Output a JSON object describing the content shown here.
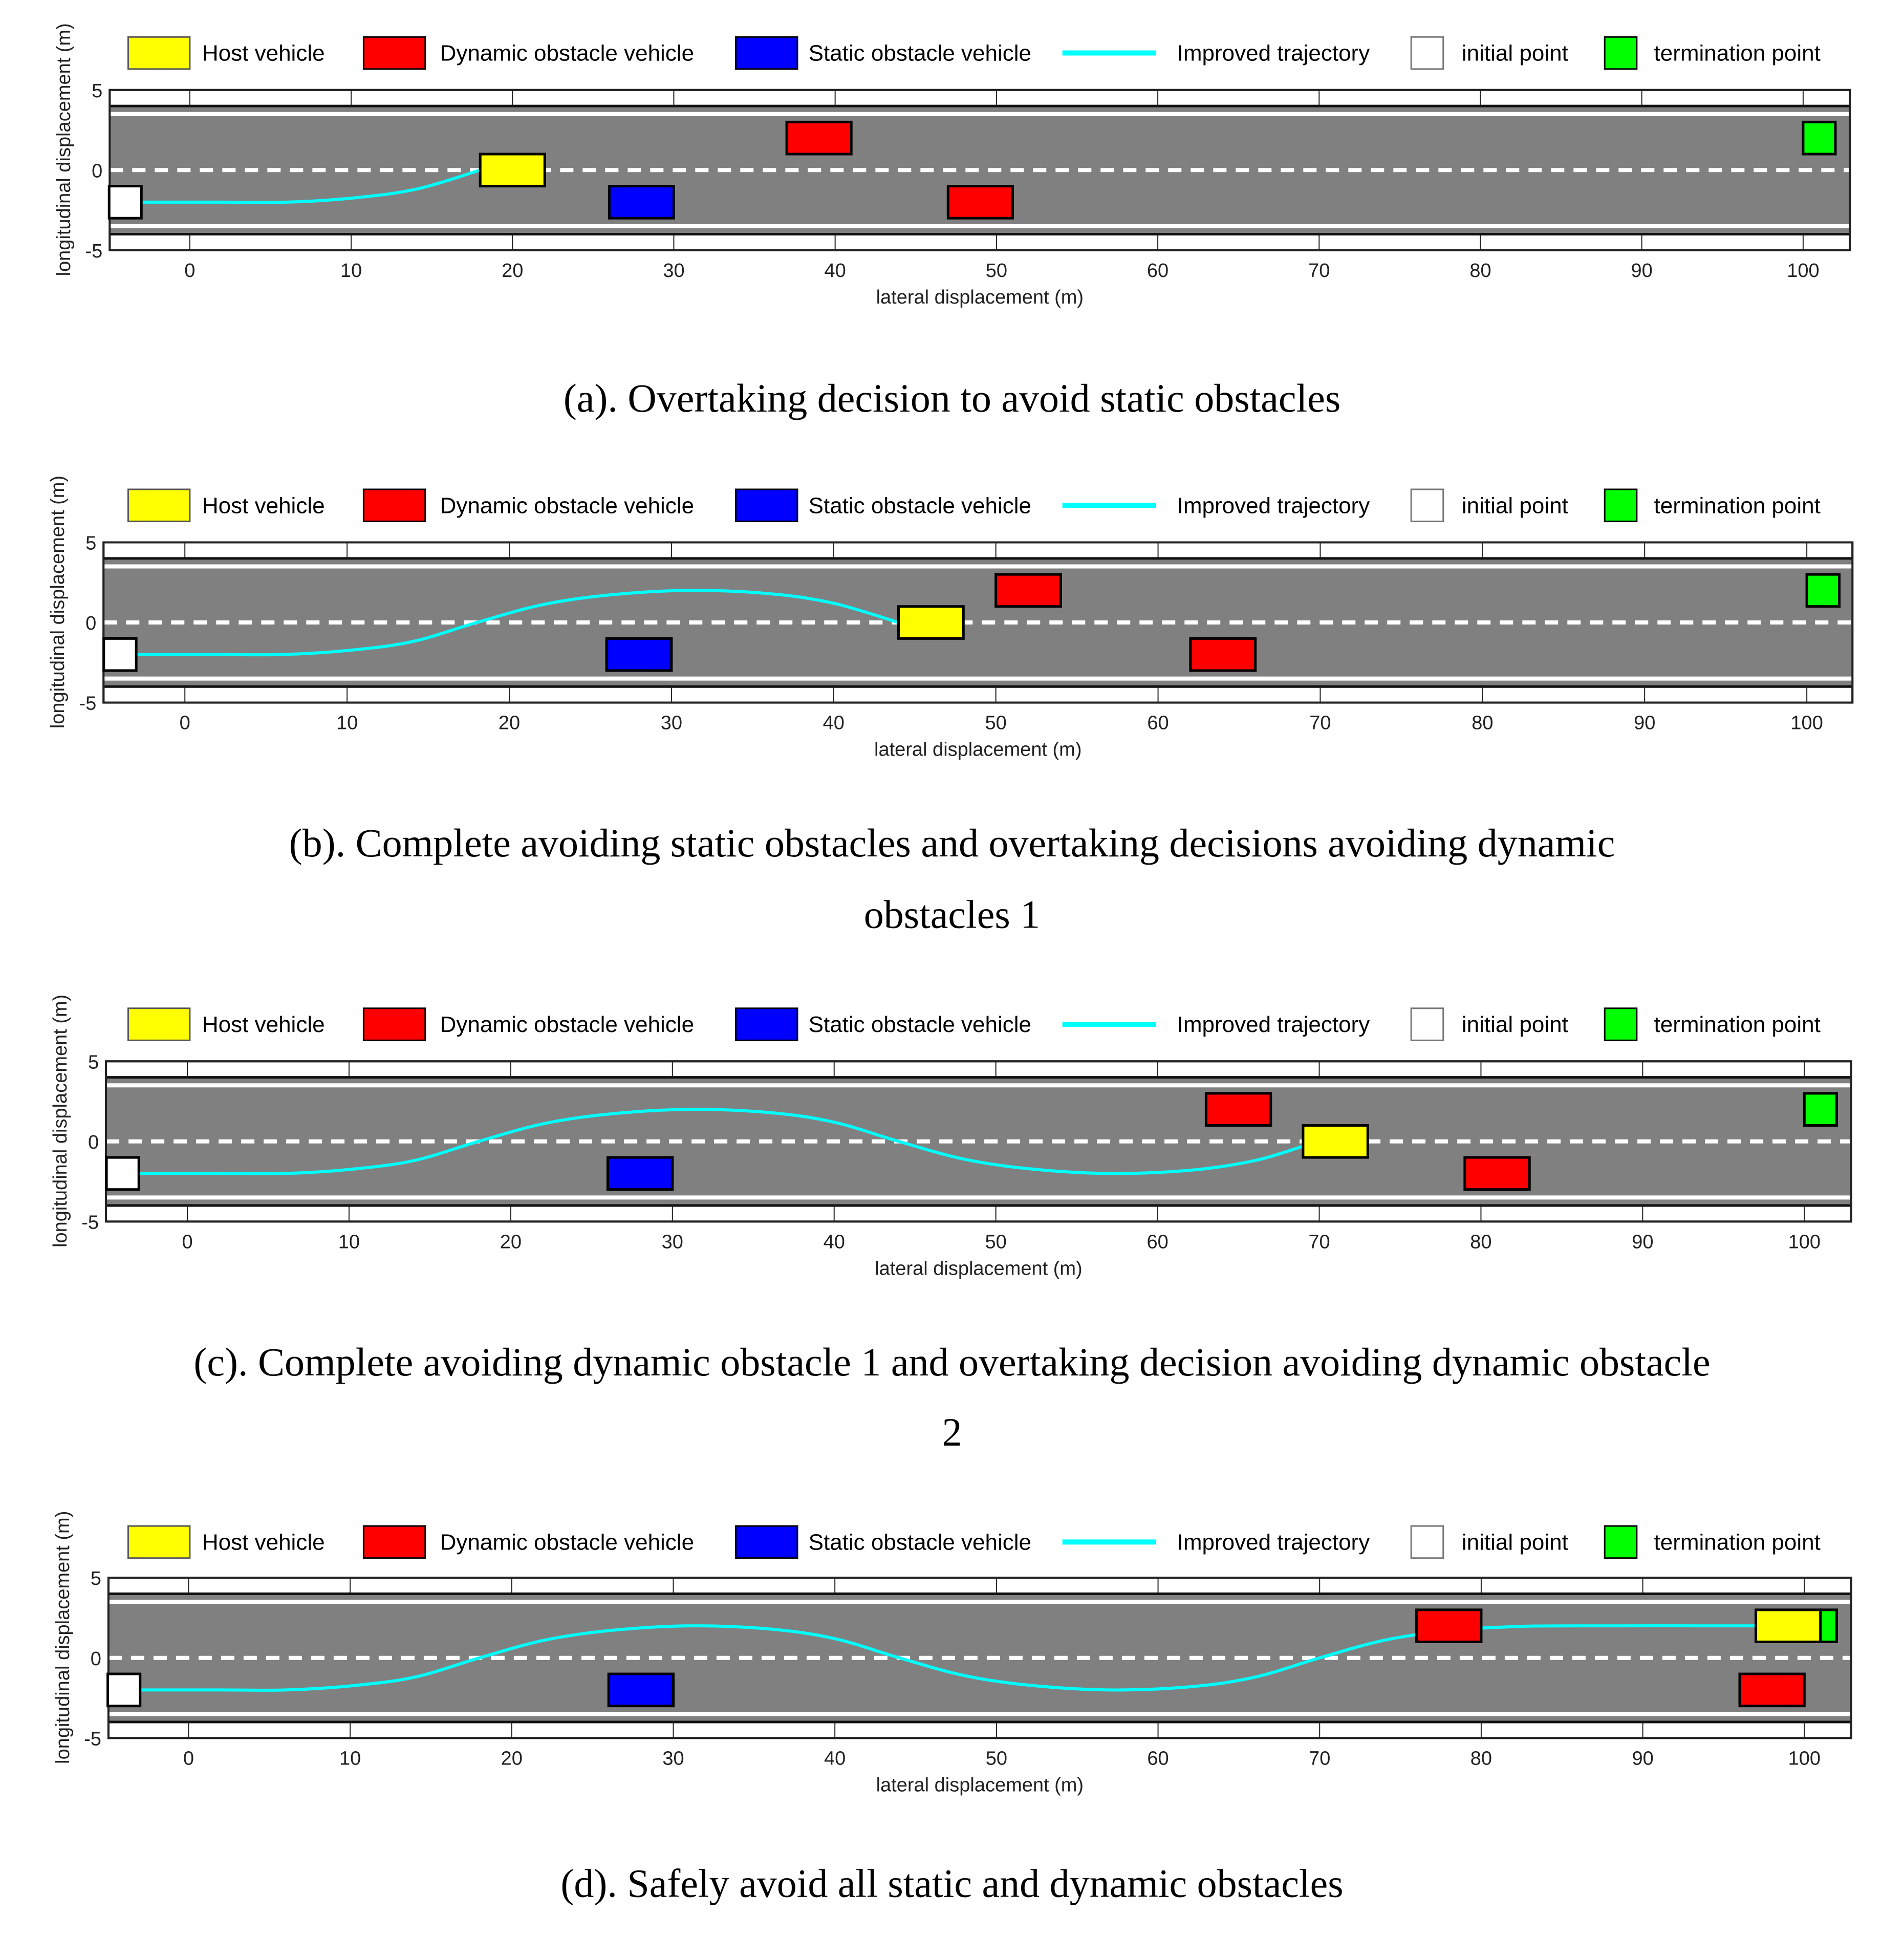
{
  "colors": {
    "host": "#ffff00",
    "dynamic": "#ff0000",
    "static": "#0000ff",
    "trajectory": "#00ffff",
    "initial": "#ffffff",
    "termination": "#00ff00",
    "road": "#808080",
    "lane_line": "#ffffff"
  },
  "legend": {
    "host": "Host vehicle",
    "dynamic": "Dynamic obstacle vehicle",
    "static": "Static obstacle vehicle",
    "trajectory": "Improved trajectory",
    "initial": "initial point",
    "termination": "termination point"
  },
  "axes": {
    "xlabel": "lateral displacement (m)",
    "ylabel": "longitudinal displacement (m)",
    "xticks": [
      "0",
      "10",
      "20",
      "30",
      "40",
      "50",
      "60",
      "70",
      "80",
      "90",
      "100"
    ],
    "yticks": [
      "5",
      "0",
      "-5"
    ]
  },
  "captions": {
    "a": [
      "(a). Overtaking decision to avoid static obstacles"
    ],
    "b": [
      "(b). Complete avoiding static obstacles and overtaking decisions avoiding dynamic",
      "obstacles 1"
    ],
    "c": [
      "(c). Complete avoiding dynamic obstacle 1 and overtaking decision avoiding dynamic obstacle",
      "2"
    ],
    "d": [
      "(d). Safely avoid all static and dynamic obstacles"
    ]
  },
  "chart_data": [
    {
      "type": "scatter",
      "panel": "a",
      "title": "(a). Overtaking decision to avoid static obstacles",
      "xlabel": "lateral displacement (m)",
      "ylabel": "longitudinal displacement (m)",
      "xlim": [
        -5,
        103
      ],
      "ylim": [
        -5,
        5
      ],
      "road": {
        "edges": [
          4,
          -4
        ],
        "edge_lines": [
          3.5,
          -3.5
        ],
        "center_dashed": 0
      },
      "vehicles": [
        {
          "kind": "initial",
          "x": [
            -5,
            -3
          ],
          "y": [
            -3,
            -1
          ]
        },
        {
          "kind": "host",
          "x": [
            18,
            22
          ],
          "y": [
            -1,
            1
          ]
        },
        {
          "kind": "static",
          "x": [
            26,
            30
          ],
          "y": [
            -3,
            -1
          ]
        },
        {
          "kind": "dynamic",
          "x": [
            37,
            41
          ],
          "y": [
            1,
            3
          ]
        },
        {
          "kind": "dynamic",
          "x": [
            47,
            51
          ],
          "y": [
            -3,
            -1
          ]
        },
        {
          "kind": "termination",
          "x": [
            100,
            102
          ],
          "y": [
            1,
            3
          ]
        }
      ],
      "trajectory": [
        [
          -3,
          -2
        ],
        [
          2,
          -2
        ],
        [
          6,
          -2
        ],
        [
          10,
          -1.75
        ],
        [
          14,
          -1.2
        ],
        [
          18,
          0
        ]
      ]
    },
    {
      "type": "scatter",
      "panel": "b",
      "title": "(b). Complete avoiding static obstacles and overtaking decisions avoiding dynamic obstacles 1",
      "xlabel": "lateral displacement (m)",
      "ylabel": "longitudinal displacement (m)",
      "xlim": [
        -5,
        103
      ],
      "ylim": [
        -5,
        5
      ],
      "road": {
        "edges": [
          4,
          -4
        ],
        "edge_lines": [
          3.5,
          -3.5
        ],
        "center_dashed": 0
      },
      "vehicles": [
        {
          "kind": "initial",
          "x": [
            -5,
            -3
          ],
          "y": [
            -3,
            -1
          ]
        },
        {
          "kind": "static",
          "x": [
            26,
            30
          ],
          "y": [
            -3,
            -1
          ]
        },
        {
          "kind": "host",
          "x": [
            44,
            48
          ],
          "y": [
            -1,
            1
          ]
        },
        {
          "kind": "dynamic",
          "x": [
            50,
            54
          ],
          "y": [
            1,
            3
          ]
        },
        {
          "kind": "dynamic",
          "x": [
            62,
            66
          ],
          "y": [
            -3,
            -1
          ]
        },
        {
          "kind": "termination",
          "x": [
            100,
            102
          ],
          "y": [
            1,
            3
          ]
        }
      ],
      "trajectory": [
        [
          -3,
          -2
        ],
        [
          2,
          -2
        ],
        [
          6,
          -2
        ],
        [
          10,
          -1.75
        ],
        [
          14,
          -1.2
        ],
        [
          18,
          0
        ],
        [
          22,
          1.1
        ],
        [
          26,
          1.7
        ],
        [
          31,
          2
        ],
        [
          36,
          1.8
        ],
        [
          40,
          1.2
        ],
        [
          44,
          0
        ]
      ]
    },
    {
      "type": "scatter",
      "panel": "c",
      "title": "(c). Complete avoiding dynamic obstacle 1 and overtaking decision avoiding dynamic obstacle 2",
      "xlabel": "lateral displacement (m)",
      "ylabel": "longitudinal displacement (m)",
      "xlim": [
        -5,
        103
      ],
      "ylim": [
        -5,
        5
      ],
      "road": {
        "edges": [
          4,
          -4
        ],
        "edge_lines": [
          3.5,
          -3.5
        ],
        "center_dashed": 0
      },
      "vehicles": [
        {
          "kind": "initial",
          "x": [
            -5,
            -3
          ],
          "y": [
            -3,
            -1
          ]
        },
        {
          "kind": "static",
          "x": [
            26,
            30
          ],
          "y": [
            -3,
            -1
          ]
        },
        {
          "kind": "dynamic",
          "x": [
            63,
            67
          ],
          "y": [
            1,
            3
          ]
        },
        {
          "kind": "host",
          "x": [
            69,
            73
          ],
          "y": [
            -1,
            1
          ]
        },
        {
          "kind": "dynamic",
          "x": [
            79,
            83
          ],
          "y": [
            -3,
            -1
          ]
        },
        {
          "kind": "termination",
          "x": [
            100,
            102
          ],
          "y": [
            1,
            3
          ]
        }
      ],
      "trajectory": [
        [
          -3,
          -2
        ],
        [
          2,
          -2
        ],
        [
          6,
          -2
        ],
        [
          10,
          -1.75
        ],
        [
          14,
          -1.2
        ],
        [
          18,
          0
        ],
        [
          22,
          1.1
        ],
        [
          26,
          1.7
        ],
        [
          31,
          2
        ],
        [
          36,
          1.8
        ],
        [
          40,
          1.2
        ],
        [
          44,
          0
        ],
        [
          48,
          -1.1
        ],
        [
          52,
          -1.7
        ],
        [
          57,
          -2
        ],
        [
          62,
          -1.8
        ],
        [
          66,
          -1.2
        ],
        [
          69,
          -0.3
        ]
      ]
    },
    {
      "type": "scatter",
      "panel": "d",
      "title": "(d). Safely avoid all static and dynamic obstacles",
      "xlabel": "lateral displacement (m)",
      "ylabel": "longitudinal displacement (m)",
      "xlim": [
        -5,
        103
      ],
      "ylim": [
        -5,
        5
      ],
      "road": {
        "edges": [
          4,
          -4
        ],
        "edge_lines": [
          3.5,
          -3.5
        ],
        "center_dashed": 0
      },
      "vehicles": [
        {
          "kind": "initial",
          "x": [
            -5,
            -3
          ],
          "y": [
            -3,
            -1
          ]
        },
        {
          "kind": "static",
          "x": [
            26,
            30
          ],
          "y": [
            -3,
            -1
          ]
        },
        {
          "kind": "dynamic",
          "x": [
            76,
            80
          ],
          "y": [
            1,
            3
          ]
        },
        {
          "kind": "host",
          "x": [
            97,
            101
          ],
          "y": [
            1,
            3
          ]
        },
        {
          "kind": "termination",
          "x": [
            101,
            102
          ],
          "y": [
            1,
            3
          ]
        },
        {
          "kind": "dynamic",
          "x": [
            96,
            100
          ],
          "y": [
            -3,
            -1
          ]
        }
      ],
      "trajectory": [
        [
          -3,
          -2
        ],
        [
          2,
          -2
        ],
        [
          6,
          -2
        ],
        [
          10,
          -1.75
        ],
        [
          14,
          -1.2
        ],
        [
          18,
          0
        ],
        [
          22,
          1.1
        ],
        [
          26,
          1.7
        ],
        [
          31,
          2
        ],
        [
          36,
          1.8
        ],
        [
          40,
          1.2
        ],
        [
          44,
          0
        ],
        [
          48,
          -1.1
        ],
        [
          52,
          -1.7
        ],
        [
          57,
          -2
        ],
        [
          62,
          -1.8
        ],
        [
          66,
          -1.2
        ],
        [
          70,
          0
        ],
        [
          74,
          1.1
        ],
        [
          78,
          1.7
        ],
        [
          82,
          1.95
        ],
        [
          86,
          2
        ],
        [
          97,
          2
        ]
      ]
    }
  ]
}
